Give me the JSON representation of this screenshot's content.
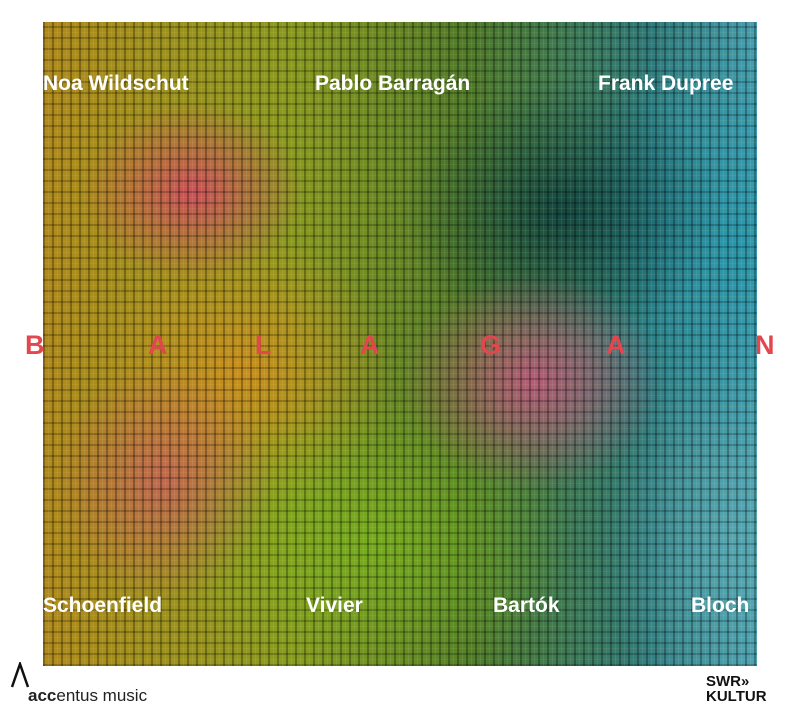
{
  "performers": [
    "Noa Wildschut",
    "Pablo Barragán",
    "Frank Dupree"
  ],
  "title_letters": [
    "B",
    "A",
    "L",
    "A",
    "G",
    "A",
    "N"
  ],
  "composers": [
    "Schoenfield",
    "Vivier",
    "Bartók",
    "Bloch"
  ],
  "label": {
    "prefix": "acc",
    "rest": "entus music"
  },
  "broadcaster": {
    "line1": "SWR»",
    "line2": "KULTUR"
  },
  "colors": {
    "title": "#e2474e",
    "text": "#ffffff"
  }
}
